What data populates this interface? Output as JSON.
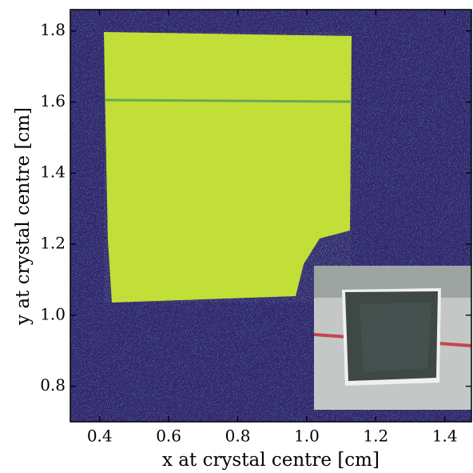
{
  "chart_data": {
    "type": "heatmap",
    "xlabel": "x at crystal centre [cm]",
    "ylabel": "y at crystal centre [cm]",
    "xlim": [
      0.315,
      1.477
    ],
    "ylim": [
      0.7,
      1.86
    ],
    "xticks": [
      0.4,
      0.6,
      0.8,
      {
        "value": 1,
        "label": "1.0"
      },
      1.2,
      1.4
    ],
    "yticks": [
      0.8,
      {
        "value": 1,
        "label": "1.0"
      },
      1.2,
      1.4,
      1.6,
      1.8
    ]
  }
}
